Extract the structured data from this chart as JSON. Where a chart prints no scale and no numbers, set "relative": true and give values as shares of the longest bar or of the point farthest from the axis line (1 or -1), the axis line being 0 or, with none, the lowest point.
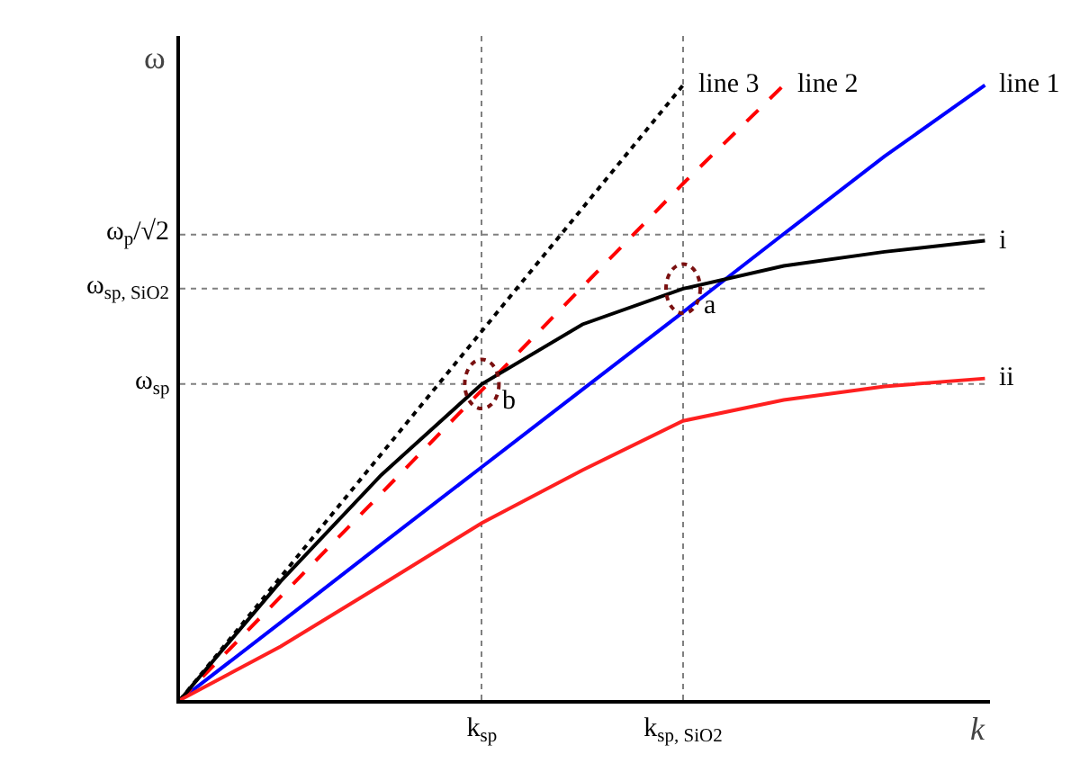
{
  "chart_data": {
    "type": "line",
    "relative": true,
    "xlabel": "k",
    "ylabel": "ω",
    "categories": [
      null,
      null,
      null,
      "k$_{sp}$",
      null,
      "k$_{sp, SiO2}$",
      null,
      null,
      null
    ],
    "grid": "x",
    "series": [
      {
        "color": "#0000ff",
        "values": [
          0,
          0.126,
          0.253,
          0.379,
          0.505,
          0.631,
          0.758,
          0.884,
          1.0
        ],
        "line_style": "solid"
      },
      {
        "color": "#ff0000",
        "values": [
          0,
          0.168,
          0.336,
          0.504,
          0.672,
          0.84,
          1.0,
          null,
          null
        ],
        "line_style": "dashed"
      },
      {
        "color": "#000000",
        "values": [
          0,
          0.2,
          0.4,
          0.6,
          0.8,
          1.0,
          null,
          null,
          null
        ],
        "line_style": "dotted"
      },
      {
        "color": "#000000",
        "values": [
          0,
          0.193,
          0.366,
          0.514,
          0.611,
          0.669,
          0.706,
          0.729,
          0.747
        ],
        "line_style": "solid"
      },
      {
        "color": "#ff2020",
        "values": [
          0,
          0.087,
          0.187,
          0.288,
          0.374,
          0.454,
          0.488,
          0.51,
          0.523
        ],
        "line_style": "solid"
      }
    ],
    "ref_lines": [
      {
        "axis": "y",
        "value": 0.757,
        "label": "ω$_{p}$/√2",
        "color": "#808080",
        "line_style": "dotted"
      },
      {
        "axis": "y",
        "value": 0.669,
        "label": "ω$_{sp, SiO2}$",
        "color": "#808080",
        "line_style": "dotted"
      },
      {
        "axis": "y",
        "value": 0.514,
        "label": "ω$_{sp}$",
        "color": "#808080",
        "line_style": "dotted"
      }
    ],
    "annotations": [
      "line 1",
      "line 2",
      "line 3",
      "i",
      "ii",
      {
        "text": "a",
        "x": "k$_{sp, SiO2}$",
        "y": 0.669
      },
      {
        "text": "b",
        "x": "k$_{sp}$",
        "y": 0.514
      }
    ]
  }
}
